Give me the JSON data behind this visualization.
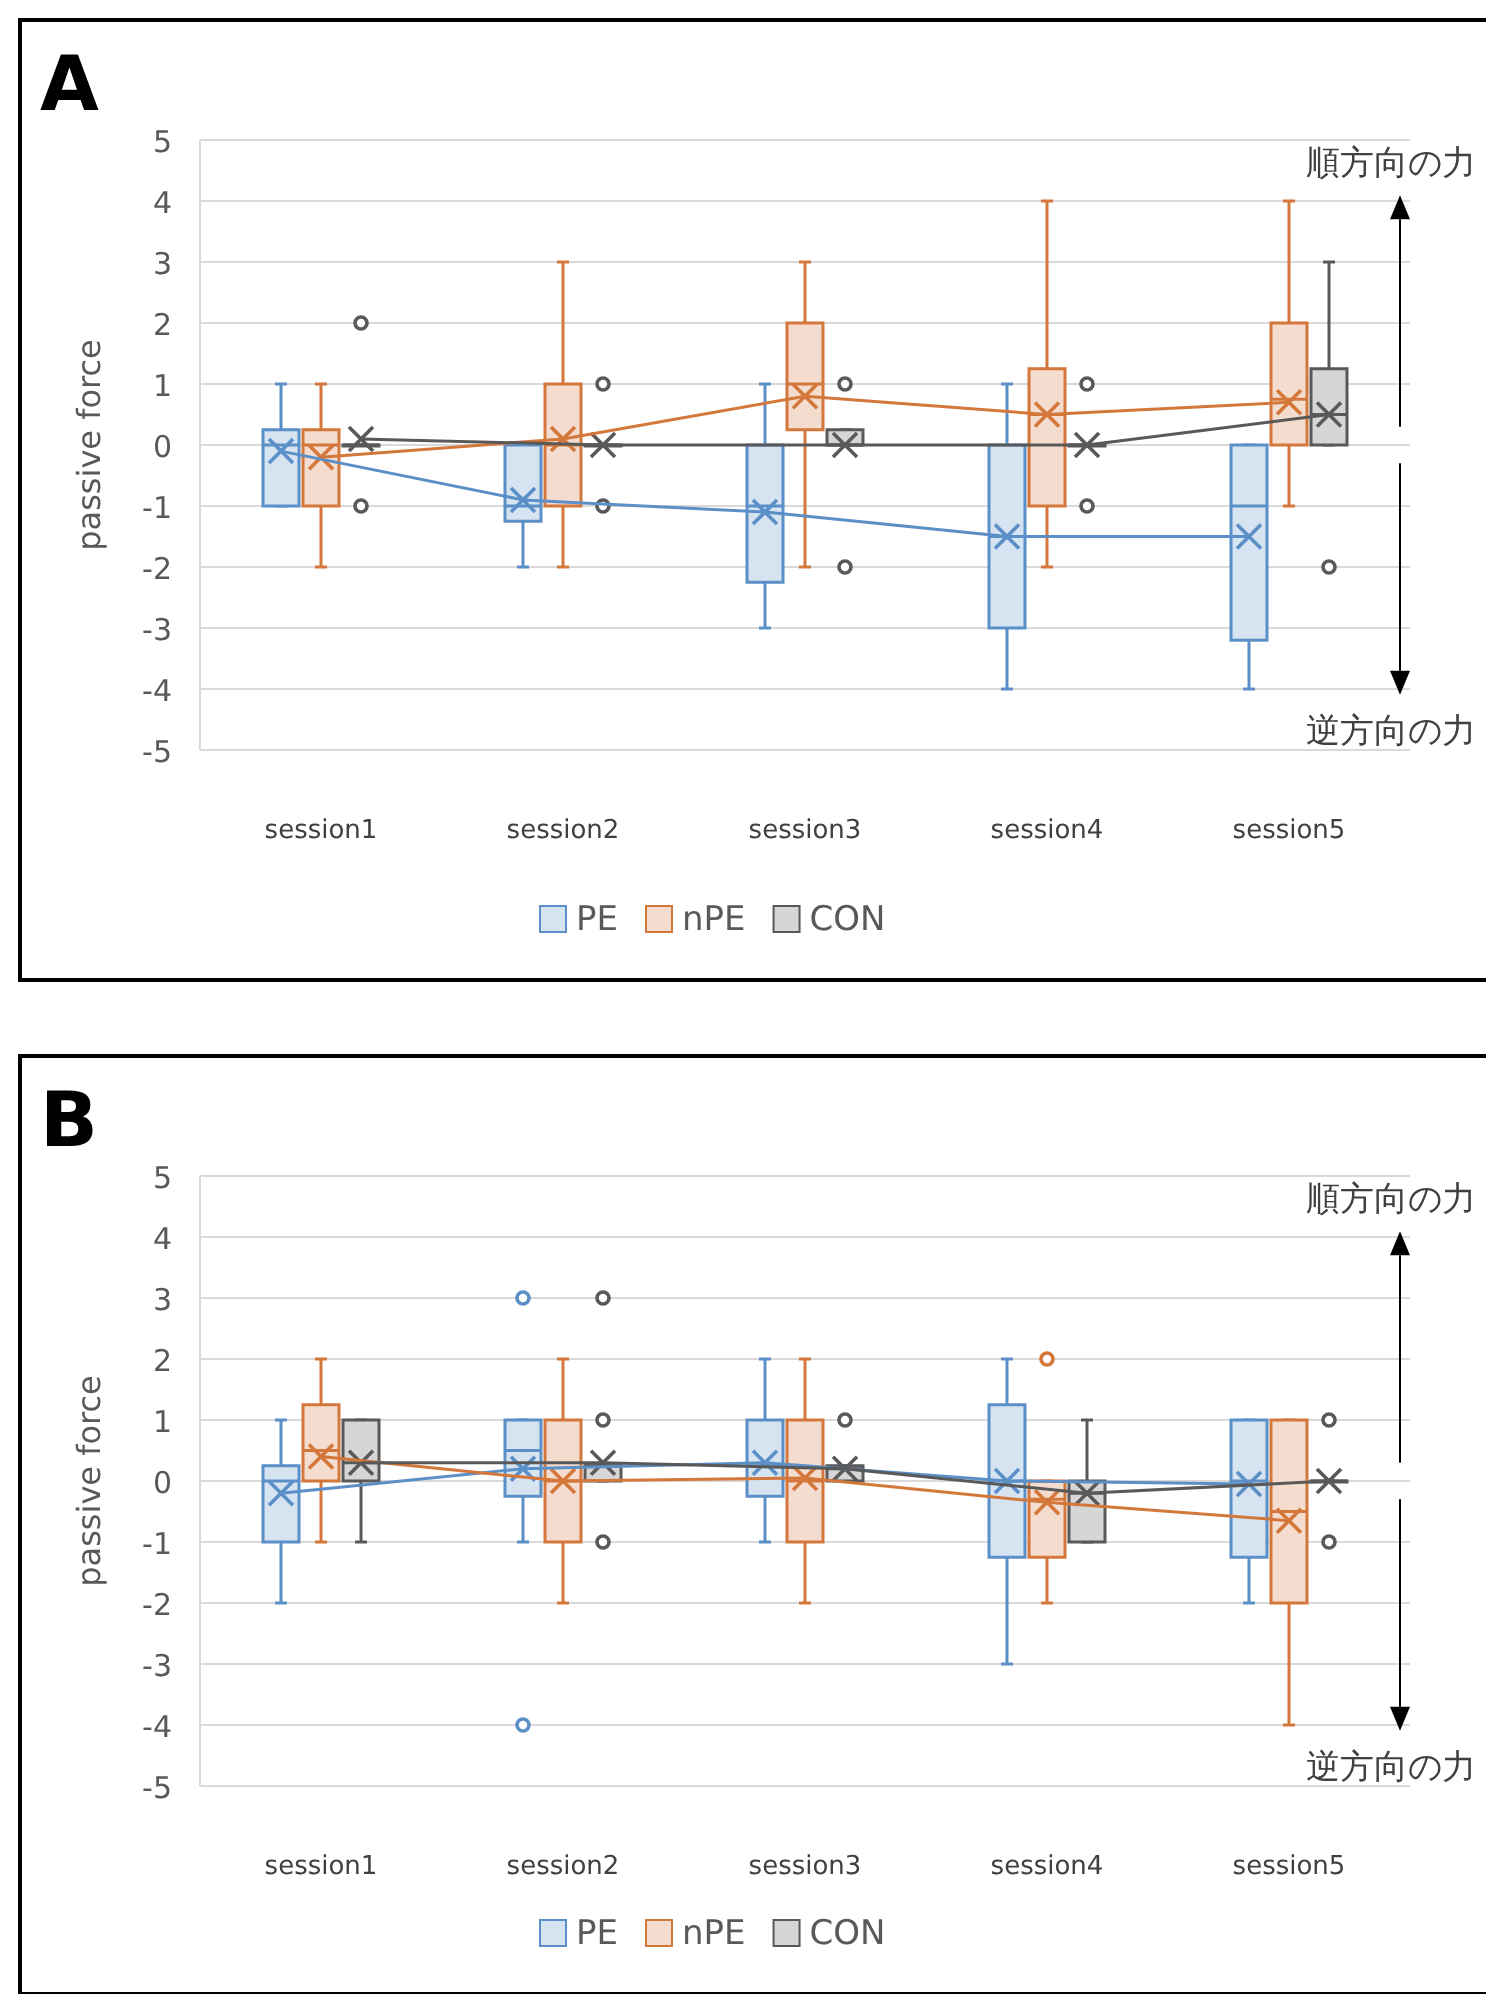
{
  "chart_data": [
    {
      "type": "box",
      "title": "A",
      "ylabel": "passive force",
      "categories": [
        "session1",
        "session2",
        "session3",
        "session4",
        "session5"
      ],
      "ylim": [
        -5,
        5
      ],
      "yticks": [
        -5,
        -4,
        -3,
        -2,
        -1,
        0,
        1,
        2,
        3,
        4,
        5
      ],
      "grid": "y",
      "legend": "bottom",
      "annotations": [
        "順方向の力",
        "逆方向の力"
      ],
      "series": [
        {
          "name": "PE",
          "color": "#5b8fc7",
          "boxes": [
            {
              "low": -1,
              "q1": -1,
              "median": 0,
              "q3": 0.25,
              "high": 1,
              "mean": -0.1
            },
            {
              "low": -2,
              "q1": -1.25,
              "median": -1,
              "q3": 0,
              "high": 0,
              "mean": -0.9
            },
            {
              "low": -3,
              "q1": -2.25,
              "median": -1,
              "q3": 0,
              "high": 1,
              "mean": -1.1
            },
            {
              "low": -4,
              "q1": -3,
              "median": -1.5,
              "q3": 0,
              "high": 1,
              "mean": -1.5
            },
            {
              "low": -4,
              "q1": -3.2,
              "median": -1,
              "q3": 0,
              "high": 0,
              "mean": -1.5
            }
          ]
        },
        {
          "name": "nPE",
          "color": "#d4773b",
          "boxes": [
            {
              "low": -2,
              "q1": -1,
              "median": 0,
              "q3": 0.25,
              "high": 1,
              "mean": -0.2
            },
            {
              "low": -2,
              "q1": -1,
              "median": 0,
              "q3": 1,
              "high": 3,
              "mean": 0.1
            },
            {
              "low": -2,
              "q1": 0.25,
              "median": 1,
              "q3": 2,
              "high": 3,
              "mean": 0.8
            },
            {
              "low": -2,
              "q1": -1,
              "median": 0.5,
              "q3": 1.25,
              "high": 4,
              "mean": 0.5
            },
            {
              "low": -1,
              "q1": 0,
              "median": 0.75,
              "q3": 2,
              "high": 4,
              "mean": 0.7
            }
          ]
        },
        {
          "name": "CON",
          "color": "#595959",
          "boxes": [
            {
              "low": 0,
              "q1": 0,
              "median": 0,
              "q3": 0,
              "high": 0,
              "mean": 0.1,
              "outliers": [
                2,
                -1
              ]
            },
            {
              "low": 0,
              "q1": 0,
              "median": 0,
              "q3": 0,
              "high": 0,
              "mean": 0,
              "outliers": [
                1,
                -1
              ]
            },
            {
              "low": 0,
              "q1": 0,
              "median": 0,
              "q3": 0.25,
              "high": 0.25,
              "mean": 0,
              "outliers": [
                1,
                -2
              ]
            },
            {
              "low": 0,
              "q1": 0,
              "median": 0,
              "q3": 0,
              "high": 0,
              "mean": 0,
              "outliers": [
                1,
                -1
              ]
            },
            {
              "low": 0,
              "q1": 0,
              "median": 0.5,
              "q3": 1.25,
              "high": 3,
              "mean": 0.5,
              "outliers": [
                -2
              ]
            }
          ]
        },
        {
          "type": "line",
          "color": "#5b8fc7",
          "values": [
            -0.1,
            -0.9,
            -1.1,
            -1.5,
            -1.5
          ]
        },
        {
          "type": "line",
          "color": "#d4773b",
          "values": [
            -0.2,
            0.1,
            0.8,
            0.5,
            0.7
          ]
        },
        {
          "type": "line",
          "color": "#595959",
          "values": [
            0.1,
            0,
            0,
            0,
            0.5
          ]
        }
      ]
    },
    {
      "type": "box",
      "title": "B",
      "ylabel": "passive force",
      "categories": [
        "session1",
        "session2",
        "session3",
        "session4",
        "session5"
      ],
      "ylim": [
        -5,
        5
      ],
      "yticks": [
        -5,
        -4,
        -3,
        -2,
        -1,
        0,
        1,
        2,
        3,
        4,
        5
      ],
      "grid": "y",
      "legend": "bottom",
      "annotations": [
        "順方向の力",
        "逆方向の力"
      ],
      "series": [
        {
          "name": "PE",
          "color": "#5b8fc7",
          "boxes": [
            {
              "low": -2,
              "q1": -1,
              "median": 0,
              "q3": 0.25,
              "high": 1,
              "mean": -0.2
            },
            {
              "low": -1,
              "q1": -0.25,
              "median": 0.5,
              "q3": 1,
              "high": 1,
              "mean": 0.2,
              "outliers": [
                3,
                -4
              ]
            },
            {
              "low": -1,
              "q1": -0.25,
              "median": 0.25,
              "q3": 1,
              "high": 2,
              "mean": 0.3
            },
            {
              "low": -3,
              "q1": -1.25,
              "median": 0,
              "q3": 1.25,
              "high": 2,
              "mean": 0
            },
            {
              "low": -2,
              "q1": -1.25,
              "median": 0,
              "q3": 1,
              "high": 1,
              "mean": -0.05
            }
          ]
        },
        {
          "name": "nPE",
          "color": "#d4773b",
          "boxes": [
            {
              "low": -1,
              "q1": 0,
              "median": 0.5,
              "q3": 1.25,
              "high": 2,
              "mean": 0.4
            },
            {
              "low": -2,
              "q1": -1,
              "median": 0,
              "q3": 1,
              "high": 2,
              "mean": 0
            },
            {
              "low": -2,
              "q1": -1,
              "median": 0,
              "q3": 1,
              "high": 2,
              "mean": 0.05
            },
            {
              "low": -2,
              "q1": -1.25,
              "median": -0.3,
              "q3": 0,
              "high": 0,
              "mean": -0.35,
              "outliers": [
                2
              ]
            },
            {
              "low": -4,
              "q1": -2,
              "median": -0.5,
              "q3": 1,
              "high": 1,
              "mean": -0.65
            }
          ]
        },
        {
          "name": "CON",
          "color": "#595959",
          "boxes": [
            {
              "low": -1,
              "q1": 0,
              "median": 0.3,
              "q3": 1,
              "high": 1,
              "mean": 0.3
            },
            {
              "low": 0,
              "q1": 0,
              "median": 0.25,
              "q3": 0.25,
              "high": 0.25,
              "mean": 0.3,
              "outliers": [
                3,
                1,
                -1
              ]
            },
            {
              "low": 0,
              "q1": 0,
              "median": 0.2,
              "q3": 0.25,
              "high": 0.25,
              "mean": 0.2,
              "outliers": [
                1
              ]
            },
            {
              "low": -1,
              "q1": -1,
              "median": -0.2,
              "q3": 0,
              "high": 1,
              "mean": -0.2
            },
            {
              "low": 0,
              "q1": 0,
              "median": 0,
              "q3": 0,
              "high": 0,
              "mean": 0,
              "outliers": [
                1,
                -1
              ]
            }
          ]
        },
        {
          "type": "line",
          "color": "#5b8fc7",
          "values": [
            -0.2,
            0.2,
            0.3,
            0,
            -0.05
          ]
        },
        {
          "type": "line",
          "color": "#d4773b",
          "values": [
            0.4,
            0,
            0.05,
            -0.35,
            -0.65
          ]
        },
        {
          "type": "line",
          "color": "#595959",
          "values": [
            0.3,
            0.3,
            0.2,
            -0.2,
            0
          ]
        }
      ]
    }
  ]
}
